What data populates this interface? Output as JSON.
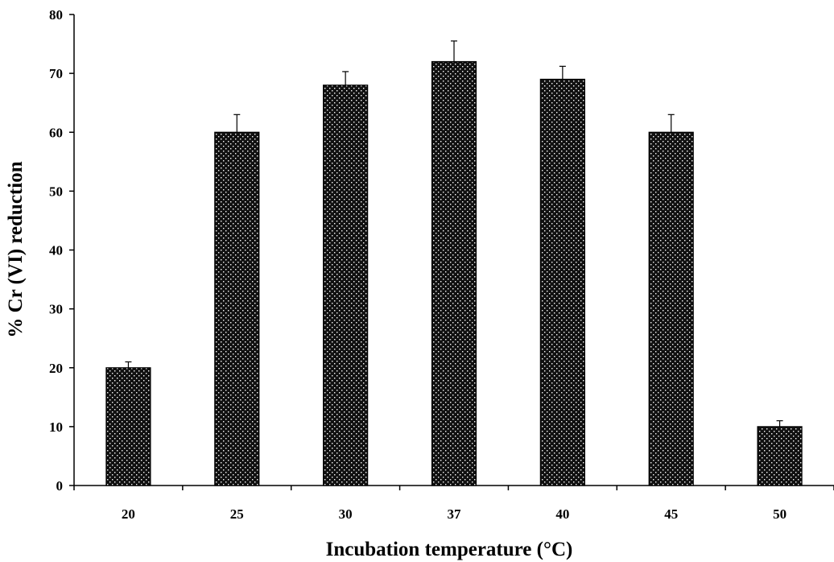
{
  "chart_data": {
    "type": "bar",
    "title": "",
    "xlabel": "Incubation temperature (°C)",
    "ylabel": "% Cr (VI) reduction",
    "categories": [
      "20",
      "25",
      "30",
      "37",
      "40",
      "45",
      "50"
    ],
    "values": [
      20,
      60,
      68,
      72,
      69,
      60,
      10
    ],
    "error_upper": [
      1,
      3,
      2.3,
      3.5,
      2.2,
      3,
      1
    ],
    "ylim": [
      0,
      80
    ],
    "yticks": [
      "0",
      "10",
      "20",
      "30",
      "40",
      "50",
      "60",
      "70",
      "80"
    ],
    "grid": false,
    "legend": "none",
    "bar_pattern": "dotted black hatching"
  }
}
